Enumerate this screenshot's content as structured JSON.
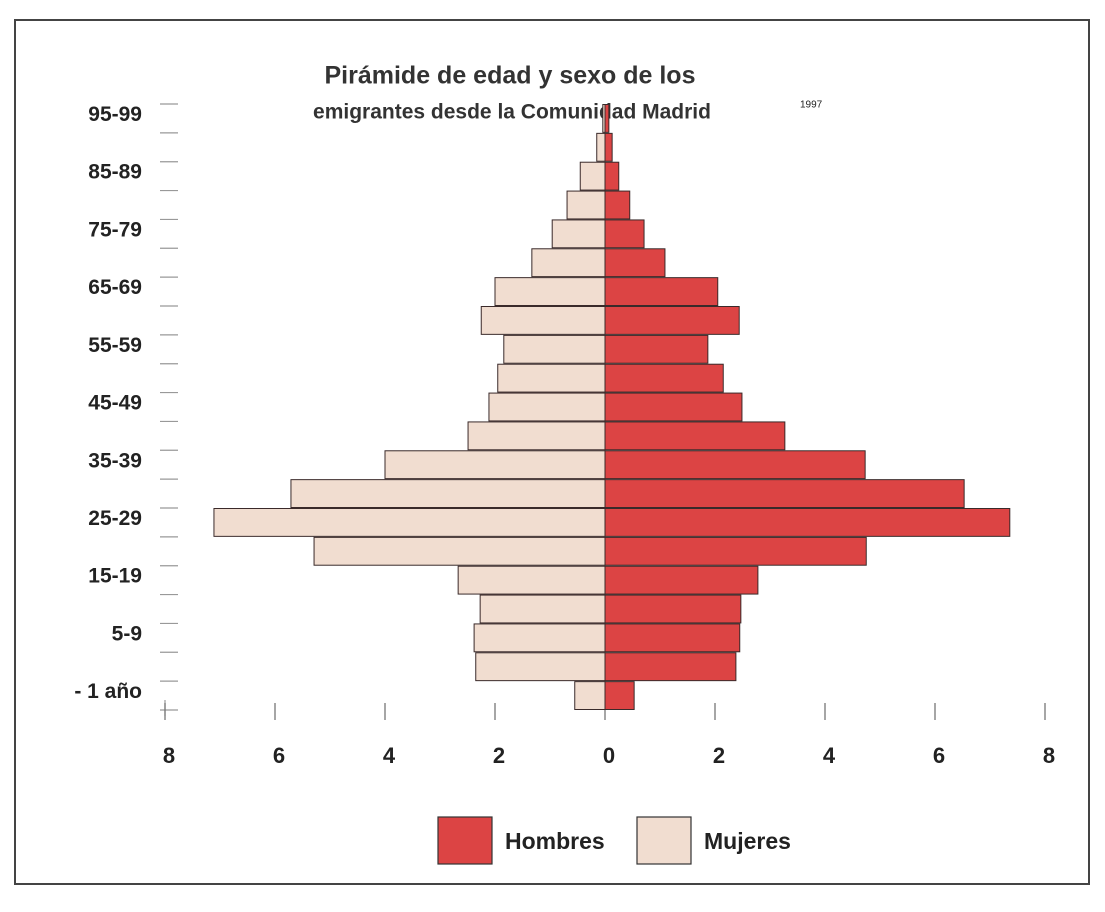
{
  "chart_data": {
    "type": "pyramid",
    "title": "Pirámide de edad y sexo de los",
    "subtitle": "emigrantes desde la Comunidad  Madrid",
    "annotation": "1997",
    "categories": [
      "- 1 año",
      null,
      "5-9",
      null,
      "15-19",
      null,
      "25-29",
      null,
      "35-39",
      null,
      "45-49",
      null,
      "55-59",
      null,
      "65-69",
      null,
      "75-79",
      null,
      "85-89",
      null,
      "95-99"
    ],
    "series": [
      {
        "name": "Hombres",
        "color": "#dc4444",
        "side": "right",
        "values": [
          0.53,
          2.38,
          2.45,
          2.47,
          2.78,
          4.75,
          7.36,
          6.53,
          4.73,
          3.27,
          2.49,
          2.15,
          1.87,
          2.44,
          2.05,
          1.09,
          0.71,
          0.45,
          0.25,
          0.13,
          0.07
        ]
      },
      {
        "name": "Mujeres",
        "color": "#f1ddd0",
        "side": "left",
        "values": [
          0.55,
          2.35,
          2.38,
          2.27,
          2.67,
          5.29,
          7.11,
          5.71,
          4.0,
          2.49,
          2.11,
          1.95,
          1.84,
          2.25,
          2.0,
          1.33,
          0.96,
          0.69,
          0.45,
          0.15,
          0.04
        ]
      }
    ],
    "xlim": [
      -8,
      8
    ],
    "xticks": [
      {
        "value": -8,
        "label": "8"
      },
      {
        "value": -6,
        "label": "6"
      },
      {
        "value": -4,
        "label": "4"
      },
      {
        "value": -2,
        "label": "2"
      },
      0,
      2,
      4,
      6,
      8
    ],
    "legend": "bottom"
  }
}
